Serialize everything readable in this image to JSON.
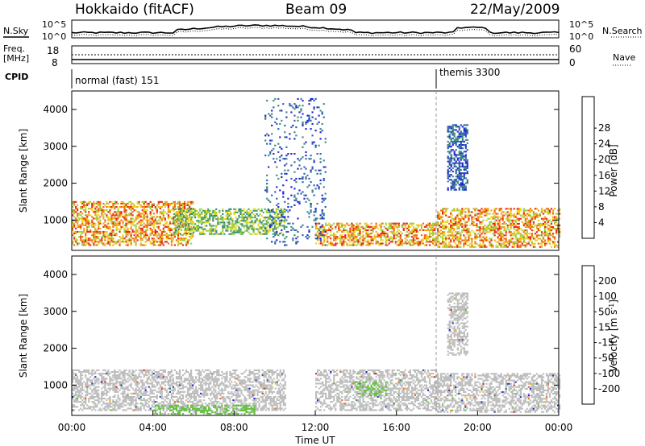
{
  "header": {
    "station": "Hokkaido (fitACF)",
    "beam": "Beam 09",
    "date": "22/May/2009"
  },
  "noise_panel": {
    "left_label": "N.Sky",
    "right_label": "N.Search",
    "left_ticks": [
      "10^5",
      "10^0"
    ],
    "right_ticks": [
      "10^5",
      "10^0"
    ]
  },
  "freq_panel": {
    "left_label_1": "Freq.",
    "left_label_2": "[MHz]",
    "right_label": "Nave",
    "left_ticks": [
      "18",
      "8"
    ],
    "right_ticks": [
      "60",
      "0"
    ]
  },
  "cpid_panel": {
    "label": "CPID",
    "modes": [
      {
        "name": "normal (fast) 151",
        "start_hour": 0
      },
      {
        "name": "themis 3300",
        "start_hour": 18
      }
    ]
  },
  "colors": {
    "power_scale": [
      "#1e22d6",
      "#2e5fb8",
      "#3d8a79",
      "#52a85a",
      "#9bcf4a",
      "#e8d81e",
      "#f5a51a",
      "#f06a14",
      "#e82516"
    ],
    "velocity_scale": [
      "#1e22d6",
      "#2b4aa8",
      "#2e7a5a",
      "#63c23e",
      "#bdbdbd",
      "#bdbdbd",
      "#f2a516",
      "#f06a14",
      "#e82516"
    ],
    "ground_scatter": "#bdbdbd"
  },
  "chart_data": [
    {
      "type": "heatmap",
      "panel": "power",
      "title": "",
      "xlabel": "",
      "ylabel": "Slant Range [km]",
      "xlim": [
        0,
        24
      ],
      "ylim": [
        180,
        4500
      ],
      "yticks": [
        "1000",
        "2000",
        "3000",
        "4000"
      ],
      "colorbar": {
        "label": "Power [dB]",
        "ticks": [
          "4",
          "8",
          "12",
          "16",
          "20",
          "24",
          "28"
        ],
        "range": [
          0,
          30
        ]
      },
      "echo_regions": [
        {
          "x": [
            0,
            6
          ],
          "y": [
            300,
            1500
          ],
          "level": "high"
        },
        {
          "x": [
            5,
            10.5
          ],
          "y": [
            600,
            1300
          ],
          "level": "mid"
        },
        {
          "x": [
            12,
            18
          ],
          "y": [
            300,
            900
          ],
          "level": "high"
        },
        {
          "x": [
            18,
            24
          ],
          "y": [
            250,
            1300
          ],
          "level": "high"
        },
        {
          "x": [
            18.5,
            19.5
          ],
          "y": [
            1800,
            3600
          ],
          "level": "low"
        },
        {
          "x": [
            9.5,
            12.5
          ],
          "y": [
            300,
            4300
          ],
          "level": "scattered"
        }
      ]
    },
    {
      "type": "heatmap",
      "panel": "velocity",
      "title": "",
      "xlabel": "Time UT",
      "ylabel": "Slant Range [km]",
      "xlim": [
        0,
        24
      ],
      "ylim": [
        180,
        4500
      ],
      "xticks": [
        "00:00",
        "04:00",
        "08:00",
        "12:00",
        "16:00",
        "20:00",
        "00:00"
      ],
      "yticks": [
        "1000",
        "2000",
        "3000",
        "4000"
      ],
      "colorbar": {
        "label": "Velocity [m s",
        "label_sup": "-1",
        "label_end": "]",
        "ticks": [
          "200",
          "100",
          "50",
          "15",
          "-15",
          "-50",
          "-100",
          "-200"
        ]
      },
      "echo_regions": [
        {
          "x": [
            0,
            10.5
          ],
          "y": [
            300,
            1400
          ],
          "level": "ground"
        },
        {
          "x": [
            12,
            18
          ],
          "y": [
            300,
            1400
          ],
          "level": "ground"
        },
        {
          "x": [
            18,
            24
          ],
          "y": [
            250,
            1300
          ],
          "level": "ground"
        },
        {
          "x": [
            18.5,
            19.5
          ],
          "y": [
            1800,
            3500
          ],
          "level": "ground"
        },
        {
          "x": [
            4,
            9
          ],
          "y": [
            200,
            450
          ],
          "level": "green"
        },
        {
          "x": [
            14,
            15.5
          ],
          "y": [
            700,
            1100
          ],
          "level": "green"
        }
      ]
    }
  ]
}
